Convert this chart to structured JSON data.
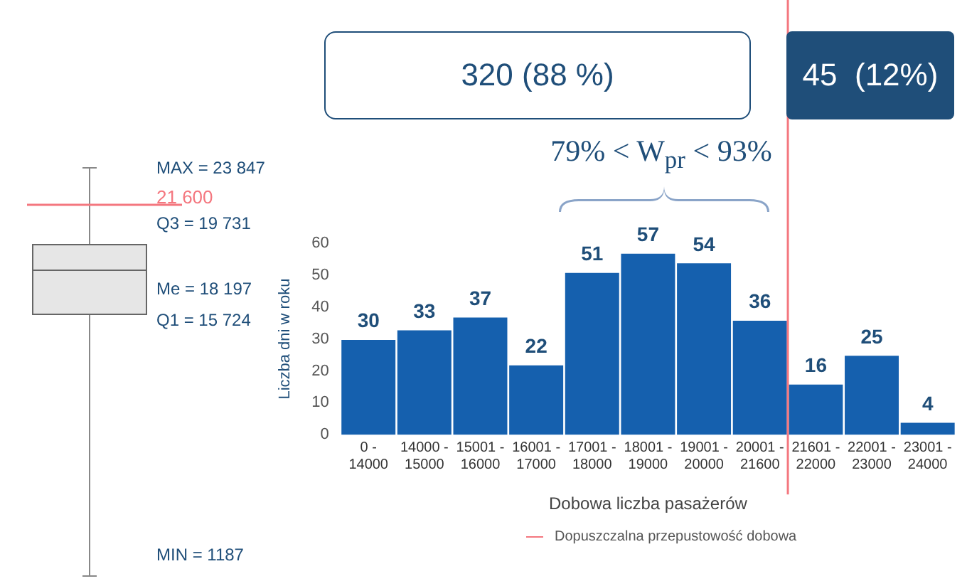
{
  "chart_data": [
    {
      "type": "other",
      "annotations": [
        "MAX = 23 847",
        "21 600",
        "Q3 = 19 731",
        "Me = 18 197",
        "Q1 = 15 724",
        "MIN = 1187"
      ]
    },
    {
      "type": "bar",
      "categories": [
        "0 -\n14000",
        "14000 -\n15000",
        "15001 -\n16000",
        "16001 -\n17000",
        "17001 -\n18000",
        "18001 -\n19000",
        "19001 -\n20000",
        "20001 -\n21600",
        "21601 -\n22000",
        "22001 -\n23000",
        "23001 -\n24000"
      ],
      "values": [
        30,
        33,
        37,
        22,
        51,
        57,
        54,
        36,
        16,
        25,
        4
      ],
      "color": "#1560ae",
      "data_labels": true,
      "ylim": [
        0,
        60
      ],
      "yticks": [
        0,
        10,
        20,
        30,
        40,
        50,
        60
      ],
      "xlabel": "Dobowa liczba pasażerów",
      "ylabel": "Liczba dni w roku",
      "ref_lines": [
        {
          "axis": "x",
          "value": "21601 -\n22000",
          "label": "Dopuszczalna przepustowość dobowa",
          "color": "#f4777f"
        }
      ],
      "legend": "bottom",
      "annotations": [
        "320 (88 %)",
        "45  (12%)",
        "79% < W$_{pr}$ < 93%"
      ]
    }
  ]
}
